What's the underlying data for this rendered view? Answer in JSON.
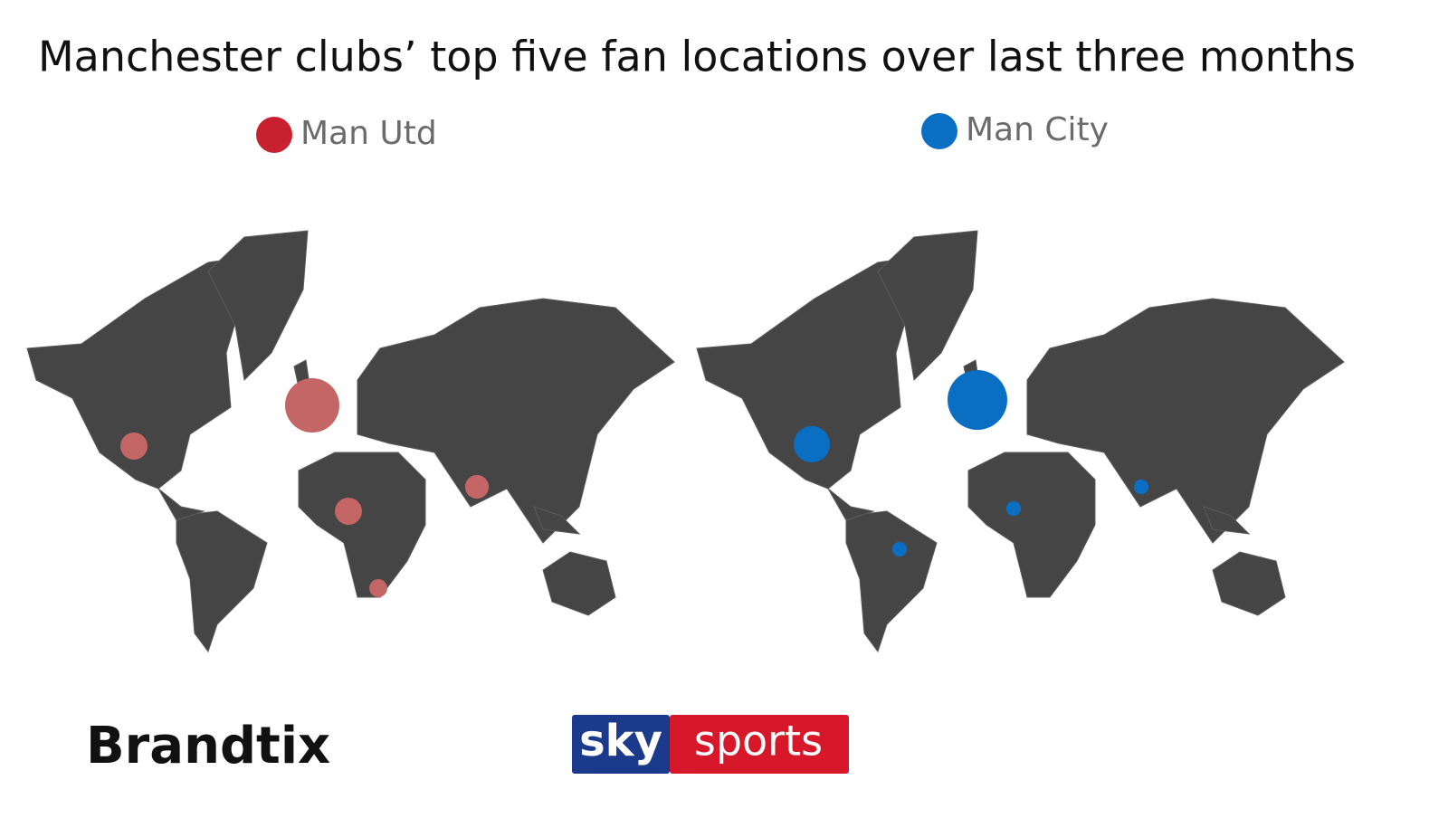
{
  "title": "Manchester clubs’ top five fan locations over last three months",
  "maps": [
    {
      "name": "Man Utd",
      "legend_color": "#c8202f",
      "bubble_color": "#c46566",
      "values": [
        100,
        25,
        25,
        19,
        11
      ]
    },
    {
      "name": "Man City",
      "legend_color": "#0a6fc2",
      "bubble_color": "#0a6fc2",
      "values": [
        100,
        37,
        6,
        6,
        6
      ]
    }
  ],
  "logos": {
    "brandtix": "Brandtix",
    "sky": "sky",
    "sports": "sports"
  }
}
